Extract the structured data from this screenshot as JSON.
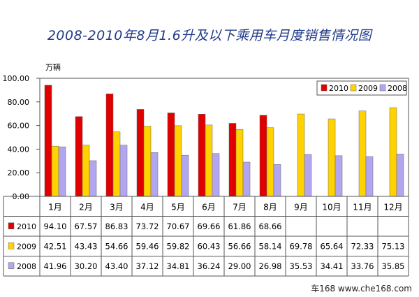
{
  "chart_data": {
    "type": "bar",
    "title": "2008-2010年8月1.6升及以下乘用车月度销售情况图",
    "unit_label": "万辆",
    "ylim": [
      0,
      100
    ],
    "yticks": [
      "0.00",
      "20.00",
      "40.00",
      "60.00",
      "80.00",
      "100.00"
    ],
    "grid": false,
    "legend_position": "top-right",
    "categories": [
      "1月",
      "2月",
      "3月",
      "4月",
      "5月",
      "6月",
      "7月",
      "8月",
      "9月",
      "10月",
      "11月",
      "12月"
    ],
    "series": [
      {
        "name": "2010",
        "color": "#e00000",
        "values": [
          94.1,
          67.57,
          86.83,
          73.72,
          70.67,
          69.66,
          61.86,
          68.66,
          null,
          null,
          null,
          null
        ],
        "labels": [
          "94.10",
          "67.57",
          "86.83",
          "73.72",
          "70.67",
          "69.66",
          "61.86",
          "68.66",
          "",
          "",
          "",
          ""
        ]
      },
      {
        "name": "2009",
        "color": "#ffd200",
        "values": [
          42.51,
          43.43,
          54.66,
          59.46,
          59.82,
          60.43,
          56.66,
          58.14,
          69.78,
          65.64,
          72.33,
          75.13
        ],
        "labels": [
          "42.51",
          "43.43",
          "54.66",
          "59.46",
          "59.82",
          "60.43",
          "56.66",
          "58.14",
          "69.78",
          "65.64",
          "72.33",
          "75.13"
        ]
      },
      {
        "name": "2008",
        "color": "#b3a6f0",
        "values": [
          41.96,
          30.2,
          43.4,
          37.12,
          34.81,
          36.24,
          29.0,
          26.98,
          35.53,
          34.41,
          33.76,
          35.85
        ],
        "labels": [
          "41.96",
          "30.20",
          "43.40",
          "37.12",
          "34.81",
          "36.24",
          "29.00",
          "26.98",
          "35.53",
          "34.41",
          "33.76",
          "35.85"
        ]
      }
    ]
  },
  "watermark": "车168 www.che168.com"
}
